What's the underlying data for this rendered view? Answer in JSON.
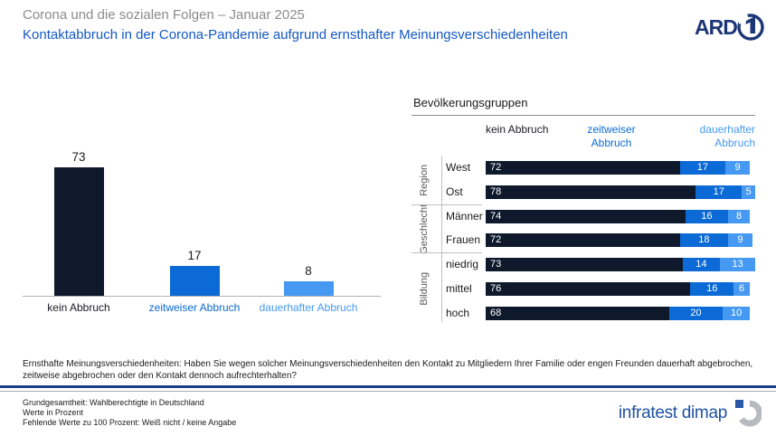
{
  "header": {
    "supertitle": "Corona und die sozialen Folgen – Januar 2025",
    "title": "Kontaktabbruch in der Corona-Pandemie aufgrund ernsthafter Meinungsverschiedenheiten",
    "broadcaster": "ARD"
  },
  "palette": {
    "kein_abbruch": "#0e1a2b",
    "zeitweiser_abbruch": "#0b6ad5",
    "dauerhafter_abbruch": "#4699f2",
    "label_dark": "#1a1a24",
    "title_blue": "#1358c5",
    "footer_rule_blue": "#1c3e85"
  },
  "chart_data": [
    {
      "type": "bar",
      "title": "",
      "categories": [
        "kein Abbruch",
        "zeitweiser Abbruch",
        "dauerhafter Abbruch"
      ],
      "values": [
        73,
        17,
        8
      ],
      "colors": [
        "#0e1a2b",
        "#0b6ad5",
        "#4699f2"
      ],
      "label_colors": [
        "#1a1a24",
        "#0b6ad5",
        "#4699f2"
      ],
      "xlabel": "",
      "ylabel": "",
      "ylim": [
        0,
        80
      ],
      "grid": false,
      "value_labels": true
    },
    {
      "type": "bar",
      "orientation": "horizontal-stacked",
      "title": "Bevölkerungsgruppen",
      "legend": [
        "kein Abbruch",
        "zeitweiser Abbruch",
        "dauerhafter Abbruch"
      ],
      "legend_colors": [
        "#1a1a24",
        "#0b6ad5",
        "#4699f2"
      ],
      "series_colors": [
        "#0e1a2b",
        "#0b6ad5",
        "#4699f2"
      ],
      "xlim": [
        0,
        100
      ],
      "groups": [
        {
          "label": "Region",
          "rows": [
            {
              "label": "West",
              "values": [
                72,
                17,
                9
              ]
            },
            {
              "label": "Ost",
              "values": [
                78,
                17,
                5
              ]
            }
          ]
        },
        {
          "label": "Geschlecht",
          "rows": [
            {
              "label": "Männer",
              "values": [
                74,
                16,
                8
              ]
            },
            {
              "label": "Frauen",
              "values": [
                72,
                18,
                9
              ]
            }
          ]
        },
        {
          "label": "Bildung",
          "rows": [
            {
              "label": "niedrig",
              "values": [
                73,
                14,
                13
              ]
            },
            {
              "label": "mittel",
              "values": [
                76,
                16,
                6
              ]
            },
            {
              "label": "hoch",
              "values": [
                68,
                20,
                10
              ]
            }
          ]
        }
      ]
    }
  ],
  "footer": {
    "question": "Ernsthafte Meinungsverschiedenheiten: Haben Sie wegen solcher Meinungsverschiedenheiten den Kontakt zu Mitgliedern Ihrer Familie oder engen Freunden dauerhaft abgebrochen, zeitweise abgebrochen oder den Kontakt dennoch aufrechterhalten?",
    "notes": [
      "Grundgesamtheit: Wahlberechtigte in Deutschland",
      "Werte in Prozent",
      "Fehlende Werte zu 100 Prozent: Weiß nicht / keine Angabe"
    ],
    "brand": "infratest dimap"
  }
}
